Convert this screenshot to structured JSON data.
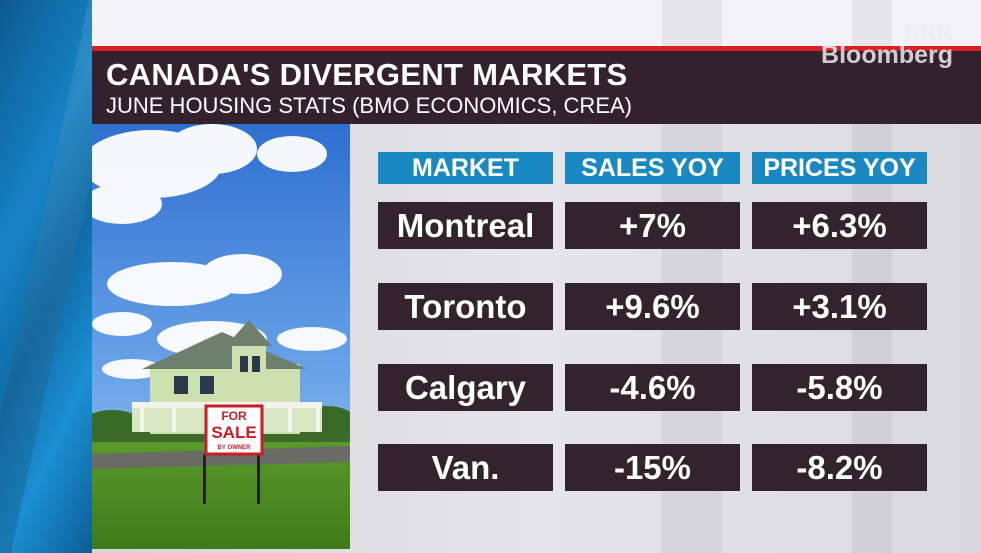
{
  "header": {
    "title": "CANADA'S DIVERGENT MARKETS",
    "subtitle": "JUNE HOUSING STATS (BMO ECONOMICS, CREA)"
  },
  "logo": {
    "line1": "BNN",
    "line2": "Bloomberg"
  },
  "photo": {
    "sign_line1": "FOR",
    "sign_line2": "SALE",
    "sign_line3": "BY OWNER"
  },
  "table": {
    "headers": [
      "MARKET",
      "SALES YOY",
      "PRICES YOY"
    ],
    "rows": [
      [
        "Montreal",
        "+7%",
        "+6.3%"
      ],
      [
        "Toronto",
        "+9.6%",
        "+3.1%"
      ],
      [
        "Calgary",
        "-4.6%",
        "-5.8%"
      ],
      [
        "Van.",
        "-15%",
        "-8.2%"
      ]
    ]
  },
  "colors": {
    "header_bg": "#33222c",
    "accent_red": "#d8202a",
    "column_header_bg": "#1a89c2",
    "cell_bg": "#33242b"
  }
}
